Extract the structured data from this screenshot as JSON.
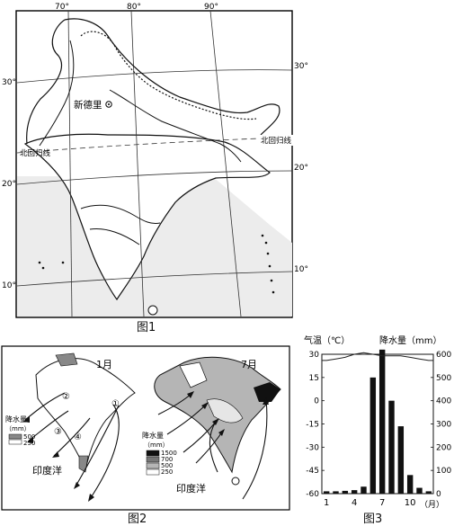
{
  "fig1": {
    "caption": "图1",
    "lon_labels": [
      "70°",
      "80°",
      "90°"
    ],
    "lat_labels_left": [
      "30°",
      "20°",
      "10°"
    ],
    "lat_labels_right": [
      "30°",
      "20°",
      "10°"
    ],
    "city": "新德里",
    "tropic_left": "北回归线",
    "tropic_right": "北回归线"
  },
  "fig2": {
    "caption": "图2",
    "jan": {
      "title": "1月",
      "legend_title": "降水量",
      "legend_unit": "（mm）",
      "legend_values": [
        "500",
        "250"
      ],
      "ocean": "印度洋",
      "markers": [
        "①",
        "②",
        "③",
        "④"
      ]
    },
    "jul": {
      "title": "7月",
      "legend_title": "降水量",
      "legend_unit": "（mm）",
      "legend_values": [
        "1500",
        "700",
        "500",
        "250"
      ],
      "ocean": "印度洋"
    }
  },
  "fig3": {
    "caption": "图3",
    "left_axis_title": "气温（℃）",
    "right_axis_title": "降水量（mm）",
    "x_unit": "（月）"
  },
  "chart_data": {
    "type": "bar",
    "categories": [
      1,
      2,
      3,
      4,
      5,
      6,
      7,
      8,
      9,
      10,
      11,
      12
    ],
    "x_tick_labels": [
      "1",
      "4",
      "7",
      "10"
    ],
    "series": [
      {
        "name": "降水量",
        "type": "bar",
        "axis": "right",
        "values": [
          10,
          10,
          12,
          15,
          30,
          500,
          620,
          400,
          290,
          80,
          25,
          10
        ]
      },
      {
        "name": "气温",
        "type": "line",
        "axis": "left",
        "values": [
          26,
          27,
          28,
          30,
          31,
          30,
          29,
          29,
          29,
          28,
          27,
          26
        ]
      }
    ],
    "left_axis": {
      "ylim": [
        -60,
        30
      ],
      "ticks": [
        "30",
        "15",
        "0",
        "-15",
        "-30",
        "-45",
        "-60"
      ]
    },
    "right_axis": {
      "ylim": [
        0,
        600
      ],
      "ticks": [
        "600",
        "500",
        "400",
        "300",
        "200",
        "100",
        "0"
      ]
    },
    "colors": {
      "bar": "#111111",
      "line": "#222222"
    }
  }
}
